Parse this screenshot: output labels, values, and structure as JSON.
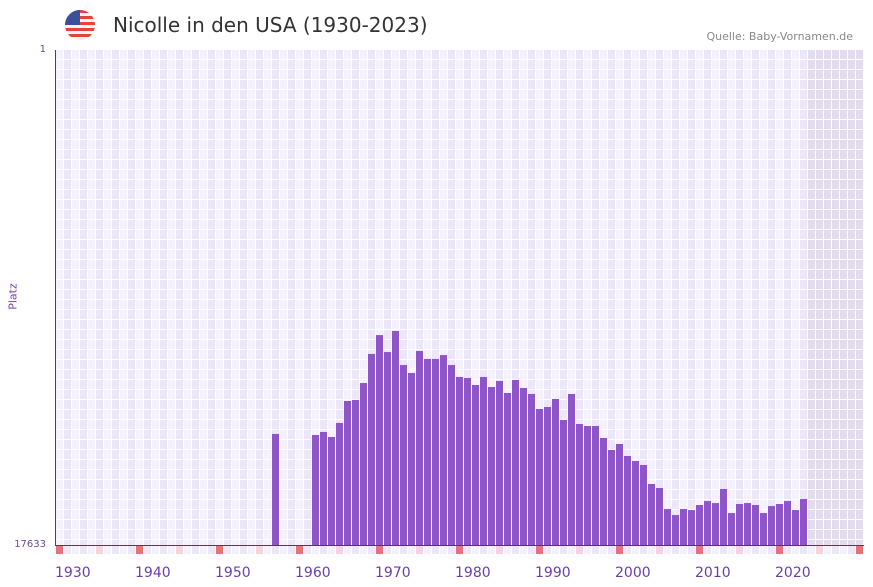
{
  "header": {
    "title": "Nicolle in den USA (1930-2023)",
    "source": "Quelle: Baby-Vornamen.de",
    "flag_icon": "usa-flag-icon"
  },
  "colors": {
    "bar": "#8e55c8",
    "axis": "#5a2f8a",
    "tick_red": "#e8707a",
    "tick_pink": "#f5d4dd",
    "grid_a": "#f4f1fc",
    "grid_b": "#ece7f8",
    "future": "#e2dcee"
  },
  "chart_data": {
    "type": "bar",
    "title": "Nicolle in den USA (1930-2023)",
    "ylabel": "Platz",
    "xlabel": "",
    "y_scale": "log-reversed",
    "ylim": [
      17633,
      1
    ],
    "y_tick_labels": [
      "1",
      "17633"
    ],
    "x_range": [
      1930,
      2030
    ],
    "x_tick_labels": [
      "1930",
      "1940",
      "1950",
      "1960",
      "1970",
      "1980",
      "1990",
      "2000",
      "2010",
      "2020"
    ],
    "last_data_year": 2023,
    "years": [
      1957,
      1962,
      1963,
      1964,
      1965,
      1966,
      1967,
      1968,
      1969,
      1970,
      1971,
      1972,
      1973,
      1974,
      1975,
      1976,
      1977,
      1978,
      1979,
      1980,
      1981,
      1982,
      1983,
      1984,
      1985,
      1986,
      1987,
      1988,
      1989,
      1990,
      1991,
      1992,
      1993,
      1994,
      1995,
      1996,
      1997,
      1998,
      1999,
      2000,
      2001,
      2002,
      2003,
      2004,
      2005,
      2006,
      2007,
      2008,
      2009,
      2010,
      2011,
      2012,
      2013,
      2014,
      2015,
      2016,
      2017,
      2018,
      2019,
      2020,
      2021,
      2022,
      2023
    ],
    "ranks": [
      1967,
      2007,
      1891,
      2088,
      1583,
      1026,
      1005,
      719,
      405,
      279,
      390,
      257,
      504,
      590,
      382,
      447,
      447,
      414,
      504,
      638,
      651,
      748,
      638,
      778,
      691,
      876,
      677,
      793,
      893,
      1202,
      1155,
      986,
      1493,
      893,
      1616,
      1681,
      1681,
      2130,
      2700,
      2398,
      3040,
      3356,
      3630,
      5286,
      5717,
      8664,
      9757,
      8664,
      8840,
      8004,
      7397,
      7700,
      5832,
      9383,
      7846,
      7700,
      8004,
      9383,
      8168,
      7846,
      7397,
      8840,
      7110
    ],
    "grid": true,
    "legend": "none"
  }
}
